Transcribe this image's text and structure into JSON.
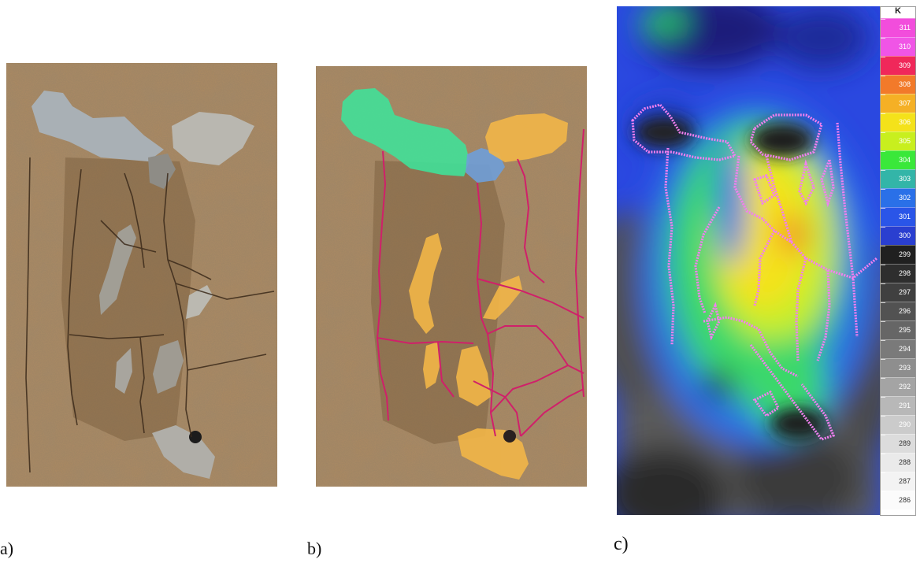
{
  "panels": [
    {
      "label": "a)",
      "description": "photo-concrete-surface-damage"
    },
    {
      "label": "b)",
      "description": "annotated-concrete-surface"
    },
    {
      "label": "c)",
      "description": "thermal-image-with-outlines"
    }
  ],
  "colorbar": {
    "unit": "K",
    "ticks": [
      "311",
      "310",
      "309",
      "308",
      "307",
      "306",
      "305",
      "304",
      "303",
      "302",
      "301",
      "300",
      "299",
      "298",
      "297",
      "296",
      "295",
      "294",
      "293",
      "292",
      "291",
      "290",
      "289",
      "288",
      "287",
      "286"
    ],
    "colors": [
      "#f24ddc",
      "#f055e6",
      "#f0285a",
      "#f27a2a",
      "#f5b025",
      "#f4e21a",
      "#c8ef1e",
      "#3ae83a",
      "#33b5a8",
      "#2a70e8",
      "#2a55e8",
      "#2a3fd0",
      "#202020",
      "#2e2e2e",
      "#404040",
      "#525252",
      "#666666",
      "#7a7a7a",
      "#8e8e8e",
      "#a4a4a4",
      "#b8b8b8",
      "#cbcbcb",
      "#dcdcdc",
      "#eaeaea",
      "#f3f3f3",
      "#fbfbfb"
    ],
    "label_colors": [
      "#ffffff",
      "#ffffff",
      "#ffffff",
      "#ffffff",
      "#ffffff",
      "#ffffff",
      "#ffffff",
      "#ffffff",
      "#ffffff",
      "#ffffff",
      "#ffffff",
      "#ffffff",
      "#ffffff",
      "#ffffff",
      "#ffffff",
      "#ffffff",
      "#ffffff",
      "#ffffff",
      "#ffffff",
      "#ffffff",
      "#ffffff",
      "#ffffff",
      "#333333",
      "#333333",
      "#333333",
      "#333333"
    ]
  },
  "colors": {
    "concrete": "#a8855e",
    "spall_green": "#3fe39a",
    "spall_blue": "#6f9ed8",
    "spall_orange": "#f2b648",
    "crack_magenta": "#d0206a",
    "outline_pink": "#f27ff0"
  }
}
